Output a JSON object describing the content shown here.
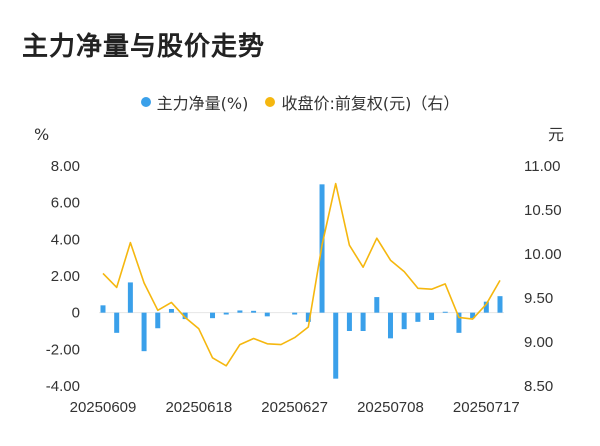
{
  "title": "主力净量与股价走势",
  "colors": {
    "bar": "#3aa0ea",
    "line": "#f5b70f"
  },
  "chart_data": {
    "type": "bar+line",
    "legend": [
      {
        "label": "主力净量(%)",
        "color": "#3aa0ea"
      },
      {
        "label": "收盘价:前复权(元)（右）",
        "color": "#f5b70f"
      }
    ],
    "left_axis": {
      "unit": "%",
      "min": -4,
      "max": 8,
      "ticks": [
        "8.00",
        "6.00",
        "4.00",
        "2.00",
        "0",
        "-2.00",
        "-4.00"
      ],
      "tick_values": [
        8,
        6,
        4,
        2,
        0,
        -2,
        -4
      ]
    },
    "right_axis": {
      "unit": "元",
      "min": 8.5,
      "max": 11.0,
      "ticks": [
        "11.00",
        "10.50",
        "10.00",
        "9.50",
        "9.00",
        "8.50"
      ],
      "tick_values": [
        11.0,
        10.5,
        10.0,
        9.5,
        9.0,
        8.5
      ]
    },
    "x_tick_labels": [
      {
        "index": 0,
        "label": "20250609"
      },
      {
        "index": 7,
        "label": "20250618"
      },
      {
        "index": 14,
        "label": "20250627"
      },
      {
        "index": 21,
        "label": "20250708"
      },
      {
        "index": 28,
        "label": "20250717"
      }
    ],
    "series": [
      {
        "name": "主力净量(%)",
        "kind": "bar",
        "values": [
          0.4,
          -1.1,
          1.65,
          -2.1,
          -0.85,
          0.2,
          -0.35,
          0.0,
          -0.3,
          -0.1,
          0.12,
          0.1,
          -0.2,
          0.0,
          -0.1,
          -0.5,
          7.0,
          -3.6,
          -1.0,
          -1.0,
          0.85,
          -1.4,
          -0.9,
          -0.5,
          -0.4,
          0.05,
          -1.1,
          -0.3,
          0.6,
          0.9
        ]
      },
      {
        "name": "收盘价:前复权(元)（右）",
        "kind": "line",
        "axis": "right",
        "values": [
          9.78,
          9.62,
          10.13,
          9.67,
          9.36,
          9.45,
          9.28,
          9.15,
          8.82,
          8.73,
          8.97,
          9.04,
          8.98,
          8.97,
          9.05,
          9.17,
          10.1,
          10.8,
          10.1,
          9.85,
          10.18,
          9.93,
          9.8,
          9.61,
          9.6,
          9.66,
          9.28,
          9.26,
          9.43,
          9.7
        ]
      }
    ]
  }
}
